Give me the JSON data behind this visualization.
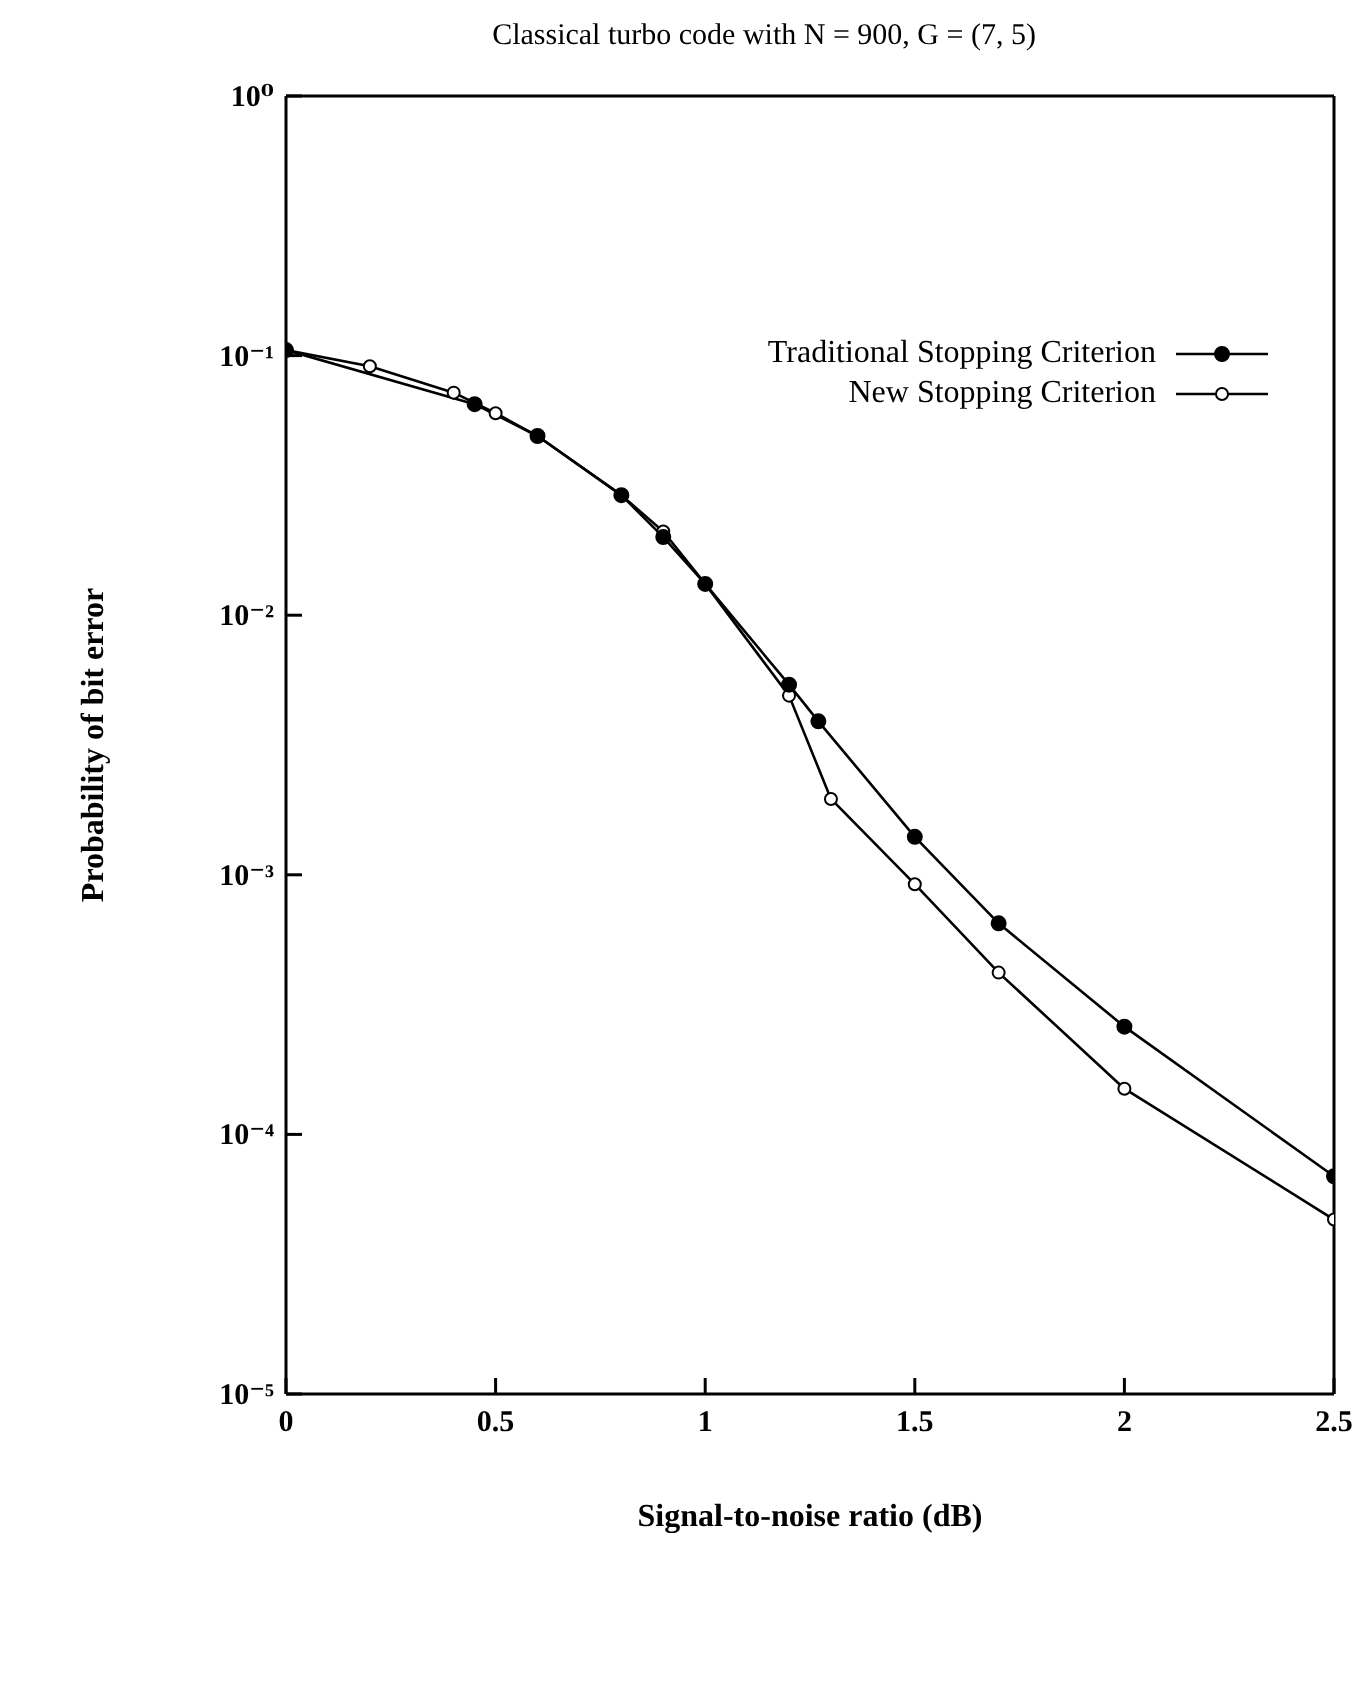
{
  "chart_data": {
    "type": "line",
    "title": "Classical turbo code with N = 900, G = (7, 5)",
    "xlabel": "Signal-to-noise ratio (dB)",
    "ylabel": "Probability of bit error",
    "series": [
      {
        "name": "Traditional Stopping Criterion",
        "color": "#000000",
        "x": [
          0,
          0.45,
          0.6,
          0.8,
          0.9,
          1.0,
          1.2,
          1.27,
          1.5,
          1.7,
          2.0,
          2.5
        ],
        "values": [
          0.105,
          0.065,
          0.049,
          0.029,
          0.02,
          0.0132,
          0.0054,
          0.0039,
          0.0014,
          0.00065,
          0.00026,
          6.9e-05
        ]
      },
      {
        "name": "New Stopping Criterion",
        "color": "#000000",
        "x": [
          0,
          0.2,
          0.4,
          0.5,
          0.6,
          0.8,
          0.9,
          1.0,
          1.2,
          1.3,
          1.5,
          1.7,
          2.0,
          2.5
        ],
        "values": [
          0.105,
          0.091,
          0.072,
          0.06,
          0.049,
          0.029,
          0.021,
          0.0132,
          0.0049,
          0.00196,
          0.00092,
          0.00042,
          0.00015,
          4.7e-05
        ]
      }
    ],
    "xlim": [
      0,
      2.5
    ],
    "xticks": [
      0,
      0.5,
      1,
      1.5,
      2,
      2.5
    ],
    "ylim": [
      1e-05,
      1
    ],
    "yticks": [
      {
        "value": 1,
        "label": "10⁰"
      },
      {
        "value": 0.1,
        "label": "10⁻¹"
      },
      {
        "value": 0.01,
        "label": "10⁻²"
      },
      {
        "value": 0.001,
        "label": "10⁻³"
      },
      {
        "value": 0.0001,
        "label": "10⁻⁴"
      },
      {
        "value": 1e-05,
        "label": "10⁻⁵"
      }
    ],
    "log": "y",
    "grid": false,
    "legend": "top right",
    "marker": "circle",
    "line_style": "solid"
  }
}
